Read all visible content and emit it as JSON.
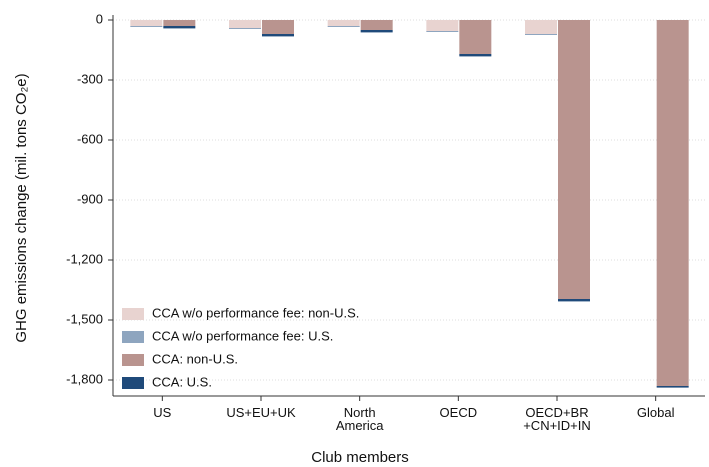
{
  "chart_data": {
    "type": "bar",
    "stacked": true,
    "x_label": "Club members",
    "y_label": "GHG emissions change (mil. tons CO₂e)",
    "categories": [
      "US",
      "US+EU+UK",
      "North\nAmerica",
      "OECD",
      "OECD+BR\n+CN+ID+IN",
      "Global"
    ],
    "series": [
      {
        "name": "CCA w/o performance fee: non-U.S.",
        "color": "#e8d3d0",
        "stack": "w/o fee",
        "values": [
          -30,
          -40,
          -30,
          -55,
          -70,
          null
        ]
      },
      {
        "name": "CCA w/o performance fee: U.S.",
        "color": "#8ea5bf",
        "stack": "w/o fee",
        "values": [
          -5,
          -5,
          -5,
          -5,
          -5,
          null
        ]
      },
      {
        "name": "CCA: non-U.S.",
        "color": "#b9948f",
        "stack": "CCA",
        "values": [
          -30,
          -70,
          -50,
          -170,
          -1395,
          -1830
        ]
      },
      {
        "name": "CCA: U.S.",
        "color": "#1f4a7a",
        "stack": "CCA",
        "values": [
          -12,
          -12,
          -12,
          -12,
          -12,
          -8
        ]
      }
    ],
    "ylim": [
      -1880,
      0
    ],
    "yticks": [
      0,
      -300,
      -600,
      -900,
      {
        "value": -1200,
        "label": "-1,200"
      },
      {
        "value": -1500,
        "label": "-1,500"
      },
      {
        "value": -1800,
        "label": "-1,800"
      }
    ],
    "grid": true,
    "legend": "lower left"
  }
}
